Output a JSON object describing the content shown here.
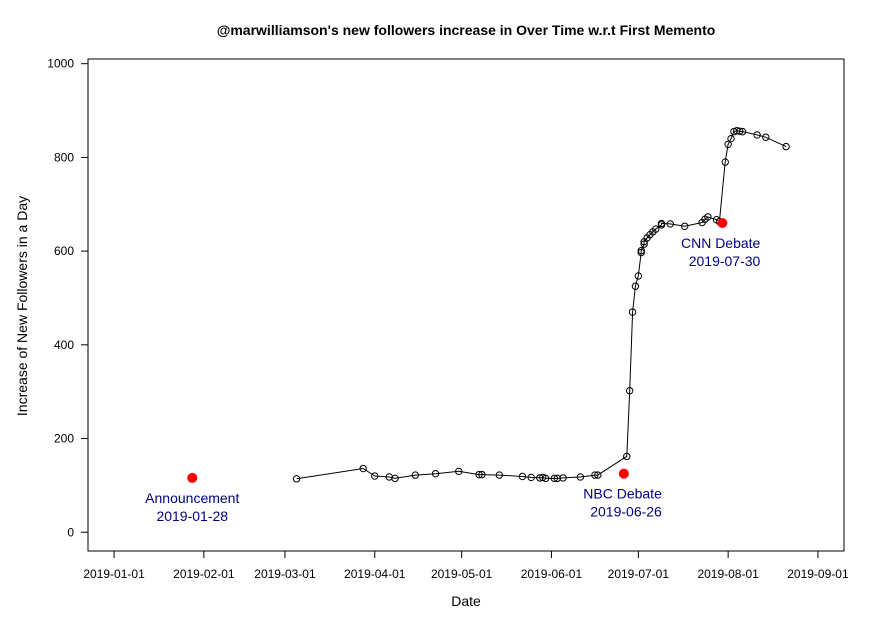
{
  "chart_data": {
    "type": "line",
    "title": "@marwilliamson's new followers increase in Over Time w.r.t First Memento",
    "xlabel": "Date",
    "ylabel": "Increase of New Followers in a Day",
    "x_axis": {
      "scale": "date",
      "range": [
        "2018-12-23",
        "2019-09-10"
      ],
      "ticks": [
        "2019-01-01",
        "2019-02-01",
        "2019-03-01",
        "2019-04-01",
        "2019-05-01",
        "2019-06-01",
        "2019-07-01",
        "2019-08-01",
        "2019-09-01"
      ]
    },
    "y_axis": {
      "range": [
        -40,
        1010
      ],
      "ticks": [
        0,
        200,
        400,
        600,
        800,
        1000
      ]
    },
    "grid": false,
    "legend": "none",
    "series": [
      {
        "marker": "open-circle",
        "color": "#000000",
        "points": [
          {
            "x": "2019-03-05",
            "y": 114
          },
          {
            "x": "2019-03-28",
            "y": 136
          },
          {
            "x": "2019-04-01",
            "y": 120
          },
          {
            "x": "2019-04-06",
            "y": 118
          },
          {
            "x": "2019-04-08",
            "y": 115
          },
          {
            "x": "2019-04-15",
            "y": 122
          },
          {
            "x": "2019-04-22",
            "y": 125
          },
          {
            "x": "2019-04-30",
            "y": 130
          },
          {
            "x": "2019-05-07",
            "y": 123
          },
          {
            "x": "2019-05-08",
            "y": 123
          },
          {
            "x": "2019-05-14",
            "y": 122
          },
          {
            "x": "2019-05-22",
            "y": 119
          },
          {
            "x": "2019-05-25",
            "y": 117
          },
          {
            "x": "2019-05-28",
            "y": 116
          },
          {
            "x": "2019-05-29",
            "y": 117
          },
          {
            "x": "2019-05-30",
            "y": 115
          },
          {
            "x": "2019-06-02",
            "y": 115
          },
          {
            "x": "2019-06-03",
            "y": 115
          },
          {
            "x": "2019-06-05",
            "y": 116
          },
          {
            "x": "2019-06-11",
            "y": 118
          },
          {
            "x": "2019-06-16",
            "y": 122
          },
          {
            "x": "2019-06-17",
            "y": 122
          },
          {
            "x": "2019-06-27",
            "y": 162
          },
          {
            "x": "2019-06-28",
            "y": 302
          },
          {
            "x": "2019-06-29",
            "y": 470
          },
          {
            "x": "2019-06-30",
            "y": 525
          },
          {
            "x": "2019-07-01",
            "y": 547
          },
          {
            "x": "2019-07-02",
            "y": 597
          },
          {
            "x": "2019-07-02",
            "y": 601
          },
          {
            "x": "2019-07-03",
            "y": 615
          },
          {
            "x": "2019-07-03",
            "y": 620
          },
          {
            "x": "2019-07-04",
            "y": 628
          },
          {
            "x": "2019-07-05",
            "y": 635
          },
          {
            "x": "2019-07-06",
            "y": 641
          },
          {
            "x": "2019-07-07",
            "y": 647
          },
          {
            "x": "2019-07-09",
            "y": 656
          },
          {
            "x": "2019-07-09",
            "y": 659
          },
          {
            "x": "2019-07-12",
            "y": 658
          },
          {
            "x": "2019-07-17",
            "y": 653
          },
          {
            "x": "2019-07-23",
            "y": 661
          },
          {
            "x": "2019-07-24",
            "y": 668
          },
          {
            "x": "2019-07-25",
            "y": 673
          },
          {
            "x": "2019-07-28",
            "y": 667
          },
          {
            "x": "2019-07-29",
            "y": 663
          },
          {
            "x": "2019-07-31",
            "y": 790
          },
          {
            "x": "2019-08-01",
            "y": 828
          },
          {
            "x": "2019-08-02",
            "y": 840
          },
          {
            "x": "2019-08-03",
            "y": 855
          },
          {
            "x": "2019-08-04",
            "y": 857
          },
          {
            "x": "2019-08-05",
            "y": 856
          },
          {
            "x": "2019-08-06",
            "y": 855
          },
          {
            "x": "2019-08-11",
            "y": 848
          },
          {
            "x": "2019-08-14",
            "y": 843
          },
          {
            "x": "2019-08-21",
            "y": 823
          }
        ]
      }
    ],
    "events": [
      {
        "x": "2019-01-28",
        "y": 116,
        "label": "Announcement",
        "date_label": "2019-01-28",
        "color": "#ff0000",
        "label_color": "#000080"
      },
      {
        "x": "2019-06-26",
        "y": 125,
        "label": "NBC Debate",
        "date_label": "2019-06-26",
        "color": "#ff0000",
        "label_color": "#000080"
      },
      {
        "x": "2019-07-30",
        "y": 660,
        "label": "CNN Debate",
        "date_label": "2019-07-30",
        "color": "#ff0000",
        "label_color": "#000080"
      }
    ]
  }
}
